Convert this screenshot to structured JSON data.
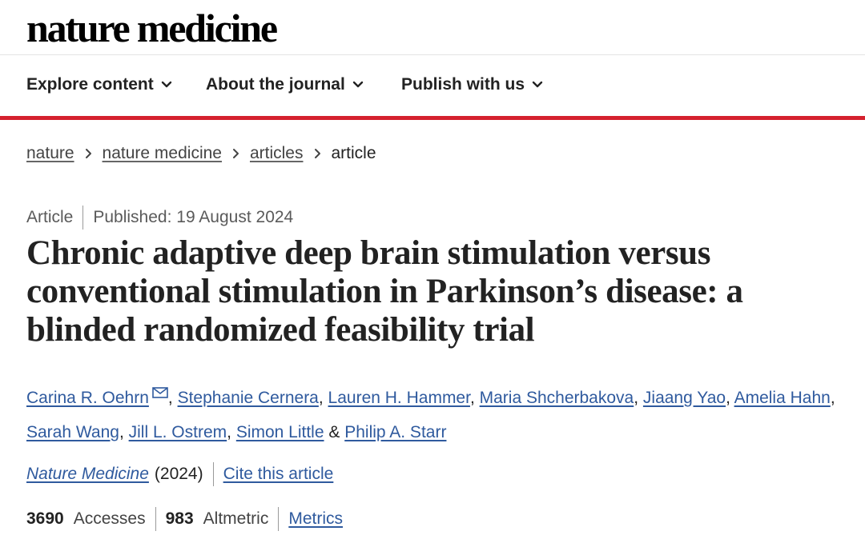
{
  "brand": {
    "name": "nature medicine"
  },
  "nav": {
    "items": [
      {
        "label": "Explore content"
      },
      {
        "label": "About the journal"
      },
      {
        "label": "Publish with us"
      }
    ]
  },
  "breadcrumb": {
    "items": [
      {
        "label": "nature"
      },
      {
        "label": "nature medicine"
      },
      {
        "label": "articles"
      }
    ],
    "current": "article"
  },
  "article": {
    "type": "Article",
    "published": "Published: 19 August 2024",
    "title": "Chronic adaptive deep brain stimulation versus conventional stimulation in Parkinson’s disease: a blinded randomized feasibility trial",
    "authors": [
      "Carina R. Oehrn",
      "Stephanie Cernera",
      "Lauren H. Hammer",
      "Maria Shcherbakova",
      "Jiaang Yao",
      "Amelia Hahn",
      "Sarah Wang",
      "Jill L. Ostrem",
      "Simon Little",
      "Philip A. Starr"
    ],
    "journal": "Nature Medicine",
    "year": "(2024)",
    "cite_label": "Cite this article"
  },
  "metrics": {
    "accesses_count": "3690",
    "accesses_label": "Accesses",
    "altmetric_count": "983",
    "altmetric_label": "Altmetric",
    "metrics_link": "Metrics"
  },
  "colors": {
    "accent_red": "#d5212e",
    "link_blue": "#2f5a9e",
    "text": "#222222",
    "muted": "#5a5a5a"
  }
}
